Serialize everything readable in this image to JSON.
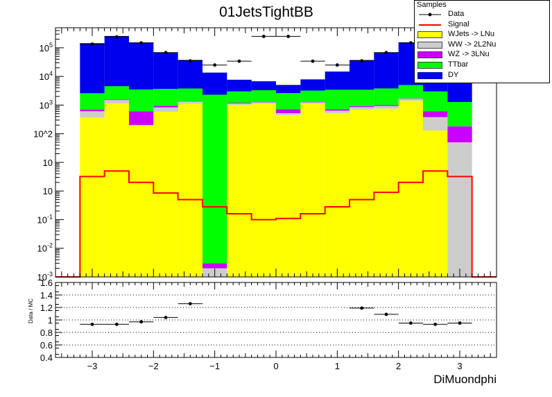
{
  "chart_data": [
    {
      "type": "bar",
      "title": "01JetsTightBB",
      "xlabel": "",
      "ylabel": "",
      "xlim": [
        -3.6,
        3.6
      ],
      "ylim": [
        0.001,
        500000
      ],
      "log_y": true,
      "y_tick_labels": [
        "10^-3",
        "10^-2",
        "10^-1",
        "1",
        "10",
        "10^2",
        "10^3",
        "10^4",
        "10^5"
      ],
      "bin_edges": [
        -3.2,
        -2.8,
        -2.4,
        -2.0,
        -1.6,
        -1.2,
        -0.8,
        -0.4,
        0.0,
        0.4,
        0.8,
        1.2,
        1.6,
        2.0,
        2.4,
        2.8,
        3.2
      ],
      "legend": {
        "title": "Samples",
        "placement": "top-right",
        "entries": [
          {
            "name": "Data",
            "style": "marker"
          },
          {
            "name": "Signal",
            "style": "line"
          },
          {
            "name": "WJets -> LNu",
            "style": "fill"
          },
          {
            "name": "WW -> 2L2Nu",
            "style": "fill"
          },
          {
            "name": "WZ -> 3LNu",
            "style": "fill"
          },
          {
            "name": "TTbar",
            "style": "fill"
          },
          {
            "name": "DY",
            "style": "fill"
          }
        ]
      },
      "stack": [
        {
          "name": "WJets -> LNu",
          "color": "#ffff00",
          "values": [
            370,
            1150,
            200,
            580,
            1100,
            0.001,
            1000,
            1100,
            440,
            1100,
            520,
            700,
            750,
            1400,
            130,
            0.001
          ]
        },
        {
          "name": "WW -> 2L2Nu",
          "color": "#cccccc",
          "values": [
            240,
            350,
            0.001,
            250,
            170,
            0.001,
            130,
            150,
            80,
            150,
            120,
            150,
            180,
            250,
            250,
            50
          ]
        },
        {
          "name": "WZ -> 3LNu",
          "color": "#cc00ff",
          "values": [
            80,
            60,
            400,
            120,
            20,
            0.001,
            70,
            50,
            200,
            50,
            80,
            70,
            80,
            50,
            220,
            130
          ]
        },
        {
          "name": "TTbar",
          "color": "#00ff00",
          "values": [
            1900,
            3000,
            2900,
            2700,
            2500,
            2300,
            1800,
            2000,
            1900,
            1900,
            2700,
            2500,
            2800,
            3300,
            2400,
            1100
          ]
        },
        {
          "name": "DY",
          "color": "#0000ee",
          "values": [
            139000,
            247000,
            147000,
            63000,
            33000,
            11000,
            4500,
            3300,
            2300,
            4500,
            11000,
            33000,
            63000,
            147000,
            247000,
            139000
          ]
        }
      ],
      "signal": {
        "name": "Signal",
        "color": "#ff0000",
        "values": [
          3.2,
          5.0,
          2.0,
          0.85,
          0.5,
          0.28,
          0.16,
          0.1,
          0.11,
          0.16,
          0.28,
          0.5,
          0.9,
          2.0,
          5.0,
          3.2
        ]
      },
      "data": {
        "name": "Data",
        "x": [
          -3.0,
          -2.6,
          -2.2,
          -1.8,
          -1.4,
          -1.0,
          -0.6,
          -0.2,
          0.2,
          0.6,
          1.0,
          1.4,
          1.8,
          2.2,
          2.6,
          3.0
        ],
        "values": [
          135000,
          240000,
          148000,
          68000,
          35000,
          25000,
          34000,
          250000,
          250000,
          34000,
          25000,
          35000,
          68000,
          148000,
          240000,
          135000
        ]
      }
    },
    {
      "type": "scatter",
      "xlabel": "DiMuondphi",
      "ylabel": "Data / MC",
      "xlim": [
        -3.6,
        3.6
      ],
      "ylim": [
        0.4,
        1.6
      ],
      "grid_y": true,
      "x_ticks": [
        -3,
        -2,
        -1,
        0,
        1,
        2,
        3
      ],
      "x_tick_labels": [
        "−3",
        "−2",
        "−1",
        "0",
        "1",
        "2",
        "3"
      ],
      "y_ticks": [
        0.4,
        0.6,
        0.8,
        1.0,
        1.2,
        1.4,
        1.6
      ],
      "y_tick_labels": [
        "0.4",
        "0.6",
        "0.8",
        "1",
        "1.2",
        "1.4",
        "1.6"
      ],
      "x": [
        -3.0,
        -2.6,
        -2.2,
        -1.8,
        -1.4,
        1.4,
        1.8,
        2.2,
        2.6,
        3.0
      ],
      "values": [
        0.93,
        0.93,
        0.97,
        1.04,
        1.26,
        1.19,
        1.09,
        0.95,
        0.93,
        0.95
      ],
      "errors": [
        0.005,
        0.004,
        0.006,
        0.008,
        0.02,
        0.02,
        0.008,
        0.006,
        0.004,
        0.005
      ],
      "half_width": 0.2
    }
  ]
}
